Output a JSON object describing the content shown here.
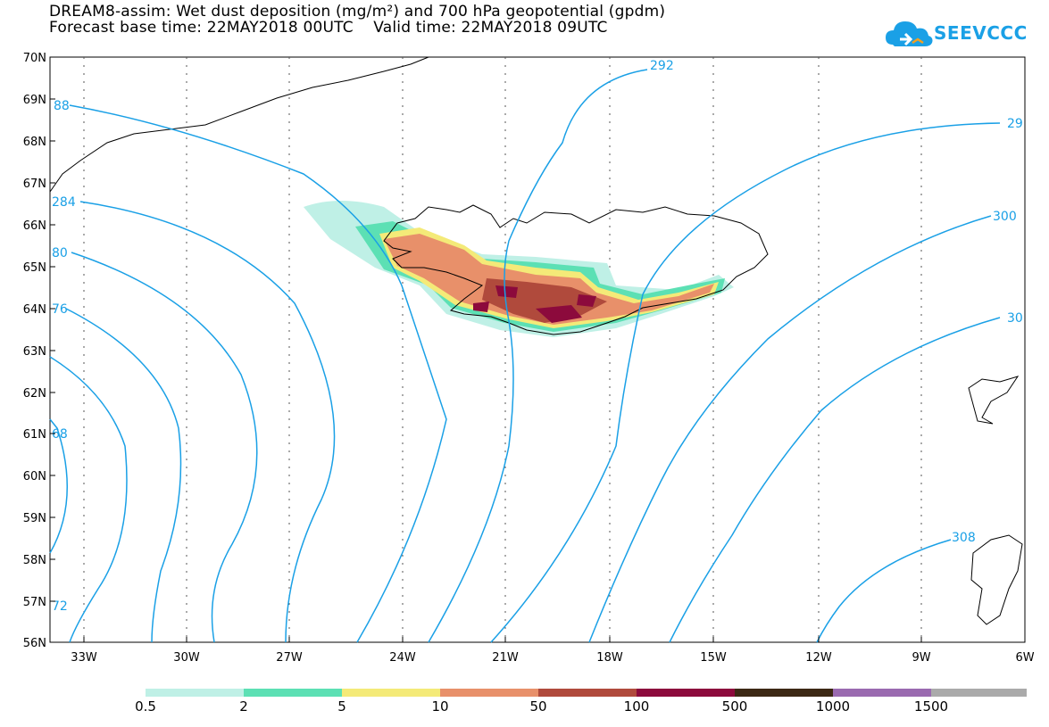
{
  "title": {
    "line1": "DREAM8-assim: Wet dust deposition (mg/m²) and 700 hPa geopotential (gpdm)",
    "line2": "Forecast base time: 22MAY2018 00UTC    Valid time: 22MAY2018 09UTC"
  },
  "logo": {
    "text": "SEEVCCC"
  },
  "map": {
    "lat_labels": [
      "70N",
      "69N",
      "68N",
      "67N",
      "66N",
      "65N",
      "64N",
      "63N",
      "62N",
      "61N",
      "60N",
      "59N",
      "58N",
      "57N",
      "56N"
    ],
    "lon_labels": [
      "33W",
      "30W",
      "27W",
      "24W",
      "21W",
      "18W",
      "15W",
      "12W",
      "9W",
      "6W"
    ],
    "contour_labels": [
      "88",
      "284",
      "80",
      "76",
      "68",
      "72",
      "292",
      "29",
      "300",
      "30",
      "308"
    ],
    "colors": {
      "contour": "#1aa0e6",
      "coast": "#000000",
      "grid": "#555555"
    }
  },
  "legend": {
    "labels": [
      "0.5",
      "2",
      "5",
      "10",
      "50",
      "100",
      "500",
      "1000",
      "1500"
    ],
    "colors": [
      "#bff0e6",
      "#5ce0b4",
      "#f4ea78",
      "#e8906a",
      "#b04a3c",
      "#8c0a3c",
      "#3c2814",
      "#9a6ab0",
      "#aaaaaa"
    ]
  }
}
